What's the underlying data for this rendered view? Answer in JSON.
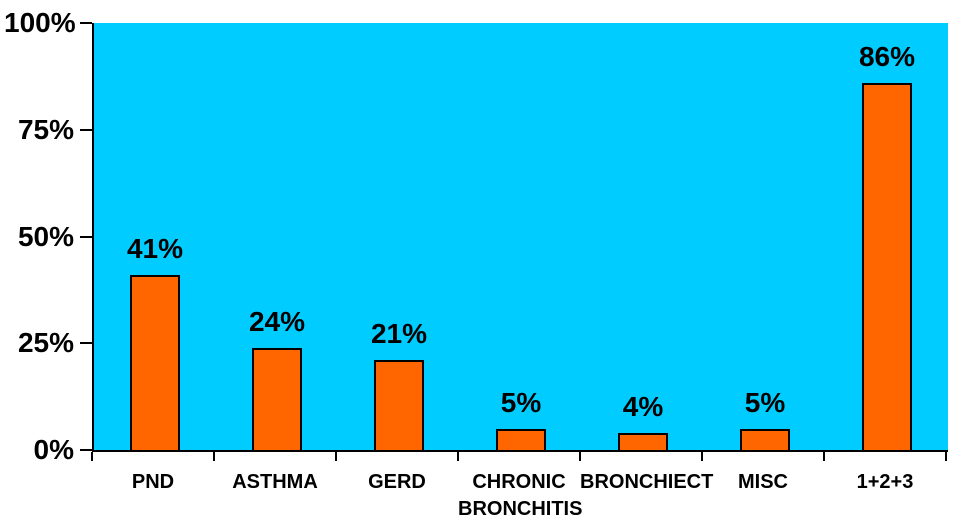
{
  "chart_data": {
    "type": "bar",
    "categories": [
      "PND",
      "ASTHMA",
      "GERD",
      "CHRONIC BRONCHITIS",
      "BRONCHIECT",
      "MISC",
      "1+2+3"
    ],
    "values": [
      41,
      24,
      21,
      5,
      4,
      5,
      86
    ],
    "data_labels": [
      "41%",
      "24%",
      "21%",
      "5%",
      "4%",
      "5%",
      "86%"
    ],
    "title": "",
    "xlabel": "",
    "ylabel": "",
    "ylim": [
      0,
      100
    ],
    "y_ticks": [
      0,
      25,
      50,
      75,
      100
    ],
    "y_tick_labels": [
      "0%",
      "25%",
      "50%",
      "75%",
      "100%"
    ],
    "grid": false,
    "legend": "none",
    "colors": {
      "plot_background": "#00ccff",
      "bar_fill": "#ff6600",
      "bar_border": "#000000",
      "axis": "#000000",
      "text": "#000000",
      "page_background": "#ffffff"
    }
  }
}
